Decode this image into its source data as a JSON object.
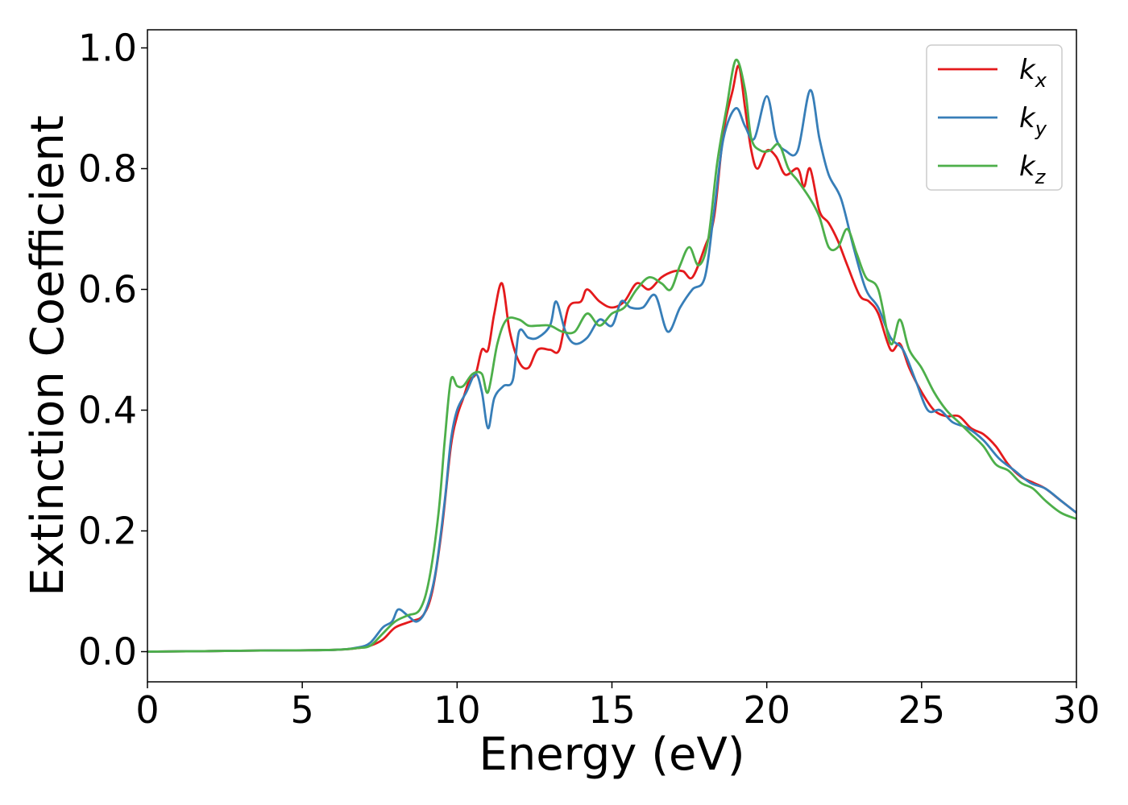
{
  "chart_data": {
    "type": "line",
    "xlabel": "Energy (eV)",
    "ylabel": "Extinction Coefficient",
    "xlim": [
      0,
      30
    ],
    "ylim": [
      -0.05,
      1.03
    ],
    "xticks": [
      0,
      5,
      10,
      15,
      20,
      25,
      30
    ],
    "yticks": [
      0.0,
      0.2,
      0.4,
      0.6,
      0.8,
      1.0
    ],
    "grid": false,
    "legend_position": "top-right",
    "series": [
      {
        "name": "k_x",
        "color": "#e41a1c",
        "points": [
          [
            0,
            0
          ],
          [
            2,
            0.001
          ],
          [
            4,
            0.002
          ],
          [
            6,
            0.003
          ],
          [
            6.8,
            0.006
          ],
          [
            7.2,
            0.01
          ],
          [
            7.6,
            0.02
          ],
          [
            8,
            0.04
          ],
          [
            8.5,
            0.05
          ],
          [
            8.9,
            0.06
          ],
          [
            9.2,
            0.1
          ],
          [
            9.5,
            0.2
          ],
          [
            9.8,
            0.34
          ],
          [
            10,
            0.39
          ],
          [
            10.2,
            0.42
          ],
          [
            10.4,
            0.45
          ],
          [
            10.6,
            0.46
          ],
          [
            10.8,
            0.5
          ],
          [
            11,
            0.5
          ],
          [
            11.2,
            0.56
          ],
          [
            11.45,
            0.61
          ],
          [
            11.7,
            0.53
          ],
          [
            12,
            0.48
          ],
          [
            12.3,
            0.47
          ],
          [
            12.6,
            0.5
          ],
          [
            13,
            0.5
          ],
          [
            13.3,
            0.5
          ],
          [
            13.6,
            0.57
          ],
          [
            14,
            0.58
          ],
          [
            14.2,
            0.6
          ],
          [
            14.6,
            0.58
          ],
          [
            15,
            0.57
          ],
          [
            15.4,
            0.58
          ],
          [
            15.8,
            0.61
          ],
          [
            16.2,
            0.6
          ],
          [
            16.6,
            0.62
          ],
          [
            17,
            0.63
          ],
          [
            17.3,
            0.63
          ],
          [
            17.6,
            0.62
          ],
          [
            18,
            0.67
          ],
          [
            18.3,
            0.72
          ],
          [
            18.6,
            0.86
          ],
          [
            18.9,
            0.93
          ],
          [
            19.1,
            0.97
          ],
          [
            19.3,
            0.9
          ],
          [
            19.5,
            0.83
          ],
          [
            19.7,
            0.8
          ],
          [
            20,
            0.83
          ],
          [
            20.3,
            0.82
          ],
          [
            20.6,
            0.79
          ],
          [
            21,
            0.8
          ],
          [
            21.2,
            0.77
          ],
          [
            21.4,
            0.8
          ],
          [
            21.7,
            0.73
          ],
          [
            22,
            0.71
          ],
          [
            22.3,
            0.68
          ],
          [
            22.6,
            0.64
          ],
          [
            23,
            0.59
          ],
          [
            23.3,
            0.58
          ],
          [
            23.6,
            0.56
          ],
          [
            24,
            0.5
          ],
          [
            24.3,
            0.51
          ],
          [
            24.6,
            0.47
          ],
          [
            25,
            0.43
          ],
          [
            25.4,
            0.4
          ],
          [
            25.8,
            0.39
          ],
          [
            26.2,
            0.39
          ],
          [
            26.6,
            0.37
          ],
          [
            27,
            0.36
          ],
          [
            27.4,
            0.34
          ],
          [
            27.8,
            0.31
          ],
          [
            28.2,
            0.29
          ],
          [
            28.6,
            0.28
          ],
          [
            29,
            0.27
          ],
          [
            29.5,
            0.25
          ],
          [
            30,
            0.23
          ]
        ]
      },
      {
        "name": "k_y",
        "color": "#377eb8",
        "points": [
          [
            0,
            0
          ],
          [
            2,
            0.001
          ],
          [
            4,
            0.002
          ],
          [
            6,
            0.003
          ],
          [
            6.8,
            0.007
          ],
          [
            7.2,
            0.015
          ],
          [
            7.6,
            0.04
          ],
          [
            7.9,
            0.05
          ],
          [
            8.1,
            0.07
          ],
          [
            8.4,
            0.06
          ],
          [
            8.7,
            0.05
          ],
          [
            9,
            0.07
          ],
          [
            9.3,
            0.13
          ],
          [
            9.6,
            0.25
          ],
          [
            9.8,
            0.35
          ],
          [
            10,
            0.4
          ],
          [
            10.3,
            0.43
          ],
          [
            10.6,
            0.46
          ],
          [
            10.8,
            0.43
          ],
          [
            11,
            0.37
          ],
          [
            11.2,
            0.42
          ],
          [
            11.5,
            0.44
          ],
          [
            11.8,
            0.45
          ],
          [
            12,
            0.53
          ],
          [
            12.3,
            0.52
          ],
          [
            12.6,
            0.52
          ],
          [
            13,
            0.54
          ],
          [
            13.2,
            0.58
          ],
          [
            13.5,
            0.53
          ],
          [
            13.8,
            0.51
          ],
          [
            14.2,
            0.52
          ],
          [
            14.6,
            0.55
          ],
          [
            15,
            0.54
          ],
          [
            15.3,
            0.58
          ],
          [
            15.6,
            0.57
          ],
          [
            16,
            0.57
          ],
          [
            16.4,
            0.59
          ],
          [
            16.8,
            0.53
          ],
          [
            17.2,
            0.57
          ],
          [
            17.6,
            0.6
          ],
          [
            18,
            0.62
          ],
          [
            18.3,
            0.73
          ],
          [
            18.6,
            0.85
          ],
          [
            19,
            0.9
          ],
          [
            19.3,
            0.87
          ],
          [
            19.6,
            0.85
          ],
          [
            20,
            0.92
          ],
          [
            20.3,
            0.85
          ],
          [
            20.6,
            0.83
          ],
          [
            21,
            0.83
          ],
          [
            21.4,
            0.93
          ],
          [
            21.7,
            0.85
          ],
          [
            22,
            0.79
          ],
          [
            22.4,
            0.75
          ],
          [
            22.8,
            0.67
          ],
          [
            23.2,
            0.6
          ],
          [
            23.6,
            0.57
          ],
          [
            24,
            0.52
          ],
          [
            24.4,
            0.5
          ],
          [
            24.8,
            0.45
          ],
          [
            25.2,
            0.4
          ],
          [
            25.6,
            0.4
          ],
          [
            26,
            0.38
          ],
          [
            26.5,
            0.37
          ],
          [
            27,
            0.35
          ],
          [
            27.5,
            0.32
          ],
          [
            28,
            0.3
          ],
          [
            28.5,
            0.28
          ],
          [
            29,
            0.27
          ],
          [
            29.5,
            0.25
          ],
          [
            30,
            0.23
          ]
        ]
      },
      {
        "name": "k_z",
        "color": "#4daf4a",
        "points": [
          [
            0,
            0
          ],
          [
            2,
            0.001
          ],
          [
            4,
            0.002
          ],
          [
            6,
            0.003
          ],
          [
            6.8,
            0.006
          ],
          [
            7.2,
            0.01
          ],
          [
            7.6,
            0.03
          ],
          [
            8,
            0.05
          ],
          [
            8.4,
            0.06
          ],
          [
            8.8,
            0.07
          ],
          [
            9.1,
            0.12
          ],
          [
            9.4,
            0.23
          ],
          [
            9.6,
            0.35
          ],
          [
            9.8,
            0.45
          ],
          [
            10,
            0.44
          ],
          [
            10.2,
            0.44
          ],
          [
            10.5,
            0.46
          ],
          [
            10.8,
            0.46
          ],
          [
            11,
            0.43
          ],
          [
            11.3,
            0.51
          ],
          [
            11.6,
            0.55
          ],
          [
            12,
            0.55
          ],
          [
            12.3,
            0.54
          ],
          [
            12.6,
            0.54
          ],
          [
            13,
            0.54
          ],
          [
            13.4,
            0.53
          ],
          [
            13.8,
            0.53
          ],
          [
            14.2,
            0.56
          ],
          [
            14.6,
            0.54
          ],
          [
            15,
            0.56
          ],
          [
            15.4,
            0.57
          ],
          [
            15.8,
            0.6
          ],
          [
            16.2,
            0.62
          ],
          [
            16.6,
            0.61
          ],
          [
            16.9,
            0.6
          ],
          [
            17.2,
            0.64
          ],
          [
            17.5,
            0.67
          ],
          [
            17.8,
            0.64
          ],
          [
            18.1,
            0.68
          ],
          [
            18.4,
            0.81
          ],
          [
            18.7,
            0.9
          ],
          [
            19,
            0.98
          ],
          [
            19.3,
            0.93
          ],
          [
            19.5,
            0.85
          ],
          [
            19.8,
            0.83
          ],
          [
            20.1,
            0.83
          ],
          [
            20.4,
            0.84
          ],
          [
            20.7,
            0.8
          ],
          [
            21,
            0.78
          ],
          [
            21.4,
            0.75
          ],
          [
            21.7,
            0.72
          ],
          [
            22,
            0.67
          ],
          [
            22.3,
            0.67
          ],
          [
            22.6,
            0.7
          ],
          [
            22.9,
            0.66
          ],
          [
            23.2,
            0.62
          ],
          [
            23.6,
            0.6
          ],
          [
            24,
            0.51
          ],
          [
            24.3,
            0.55
          ],
          [
            24.6,
            0.5
          ],
          [
            25,
            0.47
          ],
          [
            25.4,
            0.43
          ],
          [
            25.8,
            0.4
          ],
          [
            26.2,
            0.38
          ],
          [
            26.6,
            0.36
          ],
          [
            27,
            0.34
          ],
          [
            27.4,
            0.31
          ],
          [
            27.8,
            0.3
          ],
          [
            28.2,
            0.28
          ],
          [
            28.6,
            0.27
          ],
          [
            29,
            0.25
          ],
          [
            29.5,
            0.23
          ],
          [
            30,
            0.22
          ]
        ]
      }
    ]
  }
}
